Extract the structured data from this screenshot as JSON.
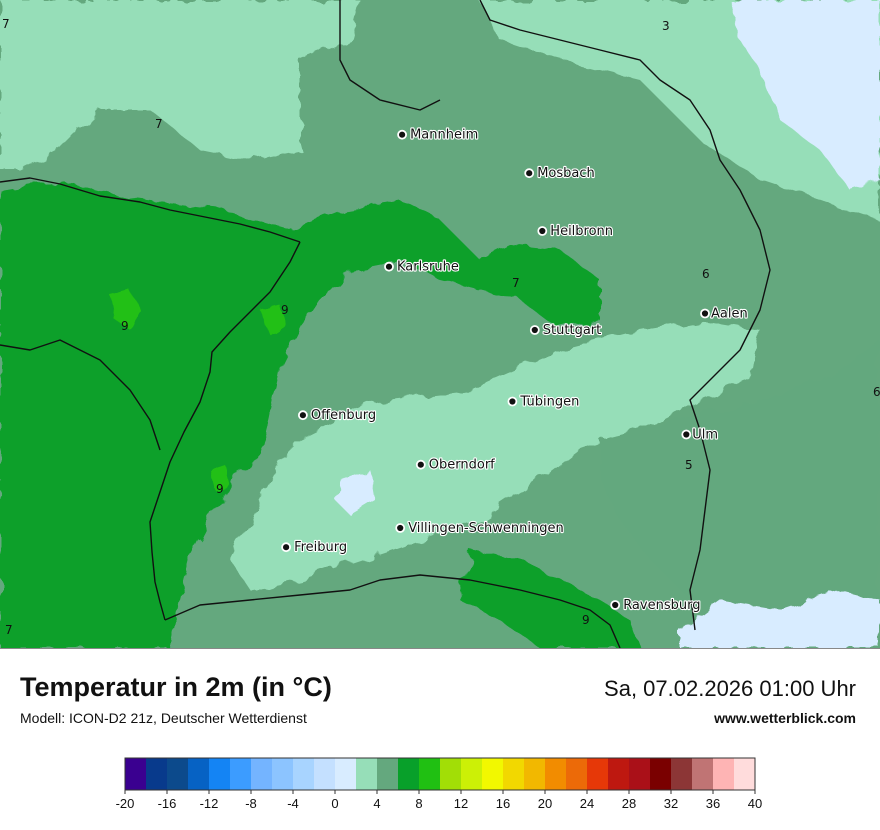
{
  "title": "Temperatur in 2m (in °C)",
  "subtitle": "Modell: ICON-D2 21z, Deutscher Wetterdienst",
  "valid_time": "Sa, 07.02.2026 01:00 Uhr",
  "website": "www.wetterblick.com",
  "cities": [
    {
      "name": "Mannheim",
      "lon": 8.47,
      "lat": 49.49
    },
    {
      "name": "Mosbach",
      "lon": 9.15,
      "lat": 49.35
    },
    {
      "name": "Heilbronn",
      "lon": 9.22,
      "lat": 49.14
    },
    {
      "name": "Karlsruhe",
      "lon": 8.4,
      "lat": 49.01
    },
    {
      "name": "Aalen",
      "lon": 10.09,
      "lat": 48.84
    },
    {
      "name": "Stuttgart",
      "lon": 9.18,
      "lat": 48.78
    },
    {
      "name": "Tübingen",
      "lon": 9.06,
      "lat": 48.52
    },
    {
      "name": "Offenburg",
      "lon": 7.94,
      "lat": 48.47
    },
    {
      "name": "Ulm",
      "lon": 9.99,
      "lat": 48.4
    },
    {
      "name": "Oberndorf",
      "lon": 8.57,
      "lat": 48.29
    },
    {
      "name": "Villingen-Schwenningen",
      "lon": 8.46,
      "lat": 48.06
    },
    {
      "name": "Freiburg",
      "lon": 7.85,
      "lat": 47.99
    },
    {
      "name": "Ravensburg",
      "lon": 9.61,
      "lat": 47.78
    }
  ],
  "isotherm_labels": [
    "7",
    "7",
    "3",
    "9",
    "9",
    "7",
    "6",
    "6",
    "5",
    "9",
    "9",
    "7"
  ],
  "legend": {
    "unit": "°C",
    "colors": [
      "#3a0090",
      "#083a8c",
      "#0c4a8c",
      "#0662c4",
      "#1484f4",
      "#3c9cff",
      "#74b4ff",
      "#8cc4ff",
      "#a8d4ff",
      "#c4e0ff",
      "#d8ecff",
      "#96deb8",
      "#64a87e",
      "#08a02a",
      "#20c012",
      "#a2de06",
      "#ccf006",
      "#f2f800",
      "#f2d800",
      "#f2b800",
      "#f28c00",
      "#ec6a08",
      "#e63808",
      "#be1810",
      "#aa1018",
      "#7a0000",
      "#8c3636",
      "#c07474",
      "#feb4b4",
      "#ffdcdc"
    ],
    "ticks": [
      "-20",
      "-16",
      "-12",
      "-8",
      "-4",
      "0",
      "4",
      "8",
      "12",
      "16",
      "20",
      "24",
      "28",
      "32",
      "36",
      "40"
    ]
  }
}
